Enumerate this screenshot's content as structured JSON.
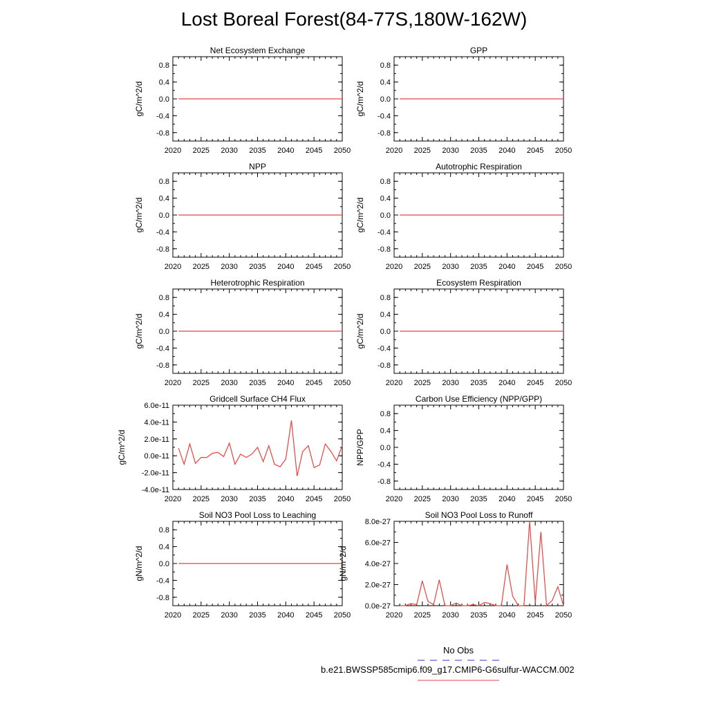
{
  "figure": {
    "title": "Lost Boreal Forest(84-77S,180W-162W)",
    "legend": [
      {
        "label": "No Obs",
        "color": "#3333cc",
        "style": "dashed"
      },
      {
        "label": "b.e21.BWSSP585cmip6.f09_g17.CMIP6-G6sulfur-WACCM.002",
        "color": "#e8413e",
        "style": "solid"
      }
    ]
  },
  "chart_data": [
    {
      "type": "line",
      "title": "Net Ecosystem Exchange",
      "xlabel": "",
      "ylabel": "gC/m^2/d",
      "xlim": [
        2020,
        2050
      ],
      "ylim": [
        -1.0,
        1.0
      ],
      "xticks": [
        2020,
        2025,
        2030,
        2035,
        2040,
        2045,
        2050
      ],
      "xtick_labels": [
        "2020",
        "2025",
        "2030",
        "2035",
        "2040",
        "2045",
        "2050"
      ],
      "yticks": [
        -0.8,
        -0.4,
        0.0,
        0.4,
        0.8
      ],
      "ytick_labels": [
        "-0.8",
        "-0.4",
        "0.0",
        "0.4",
        "0.8"
      ],
      "series": [
        {
          "color": "#e8413e",
          "x": [
            2021,
            2050
          ],
          "y": [
            0,
            0
          ]
        }
      ]
    },
    {
      "type": "line",
      "title": "GPP",
      "xlabel": "",
      "ylabel": "gC/m^2/d",
      "xlim": [
        2020,
        2050
      ],
      "ylim": [
        -1.0,
        1.0
      ],
      "xticks": [
        2020,
        2025,
        2030,
        2035,
        2040,
        2045,
        2050
      ],
      "xtick_labels": [
        "2020",
        "2025",
        "2030",
        "2035",
        "2040",
        "2045",
        "2050"
      ],
      "yticks": [
        -0.8,
        -0.4,
        0.0,
        0.4,
        0.8
      ],
      "ytick_labels": [
        "-0.8",
        "-0.4",
        "0.0",
        "0.4",
        "0.8"
      ],
      "series": [
        {
          "color": "#e8413e",
          "x": [
            2021,
            2050
          ],
          "y": [
            0,
            0
          ]
        }
      ]
    },
    {
      "type": "line",
      "title": "NPP",
      "xlabel": "",
      "ylabel": "gC/m^2/d",
      "xlim": [
        2020,
        2050
      ],
      "ylim": [
        -1.0,
        1.0
      ],
      "xticks": [
        2020,
        2025,
        2030,
        2035,
        2040,
        2045,
        2050
      ],
      "xtick_labels": [
        "2020",
        "2025",
        "2030",
        "2035",
        "2040",
        "2045",
        "2050"
      ],
      "yticks": [
        -0.8,
        -0.4,
        0.0,
        0.4,
        0.8
      ],
      "ytick_labels": [
        "-0.8",
        "-0.4",
        "0.0",
        "0.4",
        "0.8"
      ],
      "series": [
        {
          "color": "#e8413e",
          "x": [
            2021,
            2050
          ],
          "y": [
            0,
            0
          ]
        }
      ]
    },
    {
      "type": "line",
      "title": "Autotrophic Respiration",
      "xlabel": "",
      "ylabel": "gC/m^2/d",
      "xlim": [
        2020,
        2050
      ],
      "ylim": [
        -1.0,
        1.0
      ],
      "xticks": [
        2020,
        2025,
        2030,
        2035,
        2040,
        2045,
        2050
      ],
      "xtick_labels": [
        "2020",
        "2025",
        "2030",
        "2035",
        "2040",
        "2045",
        "2050"
      ],
      "yticks": [
        -0.8,
        -0.4,
        0.0,
        0.4,
        0.8
      ],
      "ytick_labels": [
        "-0.8",
        "-0.4",
        "0.0",
        "0.4",
        "0.8"
      ],
      "series": [
        {
          "color": "#e8413e",
          "x": [
            2021,
            2050
          ],
          "y": [
            0,
            0
          ]
        }
      ]
    },
    {
      "type": "line",
      "title": "Heterotrophic Respiration",
      "xlabel": "",
      "ylabel": "gC/m^2/d",
      "xlim": [
        2020,
        2050
      ],
      "ylim": [
        -1.0,
        1.0
      ],
      "xticks": [
        2020,
        2025,
        2030,
        2035,
        2040,
        2045,
        2050
      ],
      "xtick_labels": [
        "2020",
        "2025",
        "2030",
        "2035",
        "2040",
        "2045",
        "2050"
      ],
      "yticks": [
        -0.8,
        -0.4,
        0.0,
        0.4,
        0.8
      ],
      "ytick_labels": [
        "-0.8",
        "-0.4",
        "0.0",
        "0.4",
        "0.8"
      ],
      "series": [
        {
          "color": "#e8413e",
          "x": [
            2021,
            2050
          ],
          "y": [
            0,
            0
          ]
        }
      ]
    },
    {
      "type": "line",
      "title": "Ecosystem Respiration",
      "xlabel": "",
      "ylabel": "gC/m^2/d",
      "xlim": [
        2020,
        2050
      ],
      "ylim": [
        -1.0,
        1.0
      ],
      "xticks": [
        2020,
        2025,
        2030,
        2035,
        2040,
        2045,
        2050
      ],
      "xtick_labels": [
        "2020",
        "2025",
        "2030",
        "2035",
        "2040",
        "2045",
        "2050"
      ],
      "yticks": [
        -0.8,
        -0.4,
        0.0,
        0.4,
        0.8
      ],
      "ytick_labels": [
        "-0.8",
        "-0.4",
        "0.0",
        "0.4",
        "0.8"
      ],
      "series": [
        {
          "color": "#e8413e",
          "x": [
            2021,
            2050
          ],
          "y": [
            0,
            0
          ]
        }
      ]
    },
    {
      "type": "line",
      "title": "Gridcell Surface CH4 Flux",
      "xlabel": "",
      "ylabel": "gC/m^2/d",
      "xlim": [
        2020,
        2050
      ],
      "ylim": [
        -4e-11,
        6e-11
      ],
      "xticks": [
        2020,
        2025,
        2030,
        2035,
        2040,
        2045,
        2050
      ],
      "xtick_labels": [
        "2020",
        "2025",
        "2030",
        "2035",
        "2040",
        "2045",
        "2050"
      ],
      "yticks": [
        -4e-11,
        -2e-11,
        0,
        2e-11,
        4e-11,
        6e-11
      ],
      "ytick_labels": [
        "-4.0e-11",
        "-2.0e-11",
        "0.0e-11",
        "2.0e-11",
        "4.0e-11",
        "6.0e-11"
      ],
      "series": [
        {
          "color": "#e8413e",
          "x": [
            2021,
            2022,
            2023,
            2024,
            2025,
            2026,
            2027,
            2028,
            2029,
            2030,
            2031,
            2032,
            2033,
            2034,
            2035,
            2036,
            2037,
            2038,
            2039,
            2040,
            2041,
            2042,
            2043,
            2044,
            2045,
            2046,
            2047,
            2048,
            2049,
            2050
          ],
          "y": [
            9e-12,
            -1e-11,
            1.4e-11,
            -9e-12,
            -2e-12,
            -2e-12,
            3e-12,
            4e-12,
            -1e-12,
            1.5e-11,
            -1e-11,
            2e-12,
            -2e-12,
            2e-12,
            1e-11,
            -7e-12,
            1.2e-11,
            -1e-11,
            -1.3e-11,
            -4e-12,
            4.2e-11,
            -2.4e-11,
            5e-12,
            1.2e-11,
            -1.4e-11,
            -1.1e-11,
            1.4e-11,
            5e-12,
            -6e-12,
            1.2e-11
          ]
        }
      ]
    },
    {
      "type": "line",
      "title": "Carbon Use Efficiency (NPP/GPP)",
      "xlabel": "",
      "ylabel": "NPP/GPP",
      "xlim": [
        2020,
        2050
      ],
      "ylim": [
        -1.0,
        1.0
      ],
      "xticks": [
        2020,
        2025,
        2030,
        2035,
        2040,
        2045,
        2050
      ],
      "xtick_labels": [
        "2020",
        "2025",
        "2030",
        "2035",
        "2040",
        "2045",
        "2050"
      ],
      "yticks": [
        -0.8,
        -0.4,
        0.0,
        0.4,
        0.8
      ],
      "ytick_labels": [
        "-0.8",
        "-0.4",
        "0.0",
        "0.4",
        "0.8"
      ],
      "series": []
    },
    {
      "type": "line",
      "title": "Soil NO3 Pool Loss to Leaching",
      "xlabel": "",
      "ylabel": "gN/m^2/d",
      "xlim": [
        2020,
        2050
      ],
      "ylim": [
        -1.0,
        1.0
      ],
      "xticks": [
        2020,
        2025,
        2030,
        2035,
        2040,
        2045,
        2050
      ],
      "xtick_labels": [
        "2020",
        "2025",
        "2030",
        "2035",
        "2040",
        "2045",
        "2050"
      ],
      "yticks": [
        -0.8,
        -0.4,
        0.0,
        0.4,
        0.8
      ],
      "ytick_labels": [
        "-0.8",
        "-0.4",
        "0.0",
        "0.4",
        "0.8"
      ],
      "series": [
        {
          "color": "#e8413e",
          "x": [
            2021,
            2050
          ],
          "y": [
            0,
            0
          ]
        }
      ]
    },
    {
      "type": "line",
      "title": "Soil NO3 Pool Loss to Runoff",
      "xlabel": "",
      "ylabel": "gN/m^2/d",
      "xlim": [
        2020,
        2050
      ],
      "ylim": [
        0,
        8e-27
      ],
      "xticks": [
        2020,
        2025,
        2030,
        2035,
        2040,
        2045,
        2050
      ],
      "xtick_labels": [
        "2020",
        "2025",
        "2030",
        "2035",
        "2040",
        "2045",
        "2050"
      ],
      "yticks": [
        0,
        2e-27,
        4e-27,
        6e-27,
        8e-27
      ],
      "ytick_labels": [
        "0.0e-27",
        "2.0e-27",
        "4.0e-27",
        "6.0e-27",
        "8.0e-27"
      ],
      "series": [
        {
          "color": "#e8413e",
          "x": [
            2021,
            2022,
            2023,
            2024,
            2025,
            2026,
            2027,
            2028,
            2029,
            2030,
            2031,
            2032,
            2033,
            2034,
            2035,
            2036,
            2037,
            2038,
            2039,
            2040,
            2041,
            2042,
            2043,
            2044,
            2045,
            2046,
            2047,
            2048,
            2049,
            2050
          ],
          "y": [
            0,
            0,
            2e-28,
            1e-28,
            2.35e-27,
            4e-28,
            1e-28,
            2.45e-27,
            0,
            0,
            2.5e-28,
            0,
            0,
            1e-28,
            0,
            3e-28,
            2e-28,
            0,
            0,
            3.9e-27,
            9e-28,
            0,
            0,
            8e-27,
            3e-28,
            7e-27,
            0,
            5e-28,
            1.8e-27,
            0
          ]
        }
      ]
    }
  ]
}
